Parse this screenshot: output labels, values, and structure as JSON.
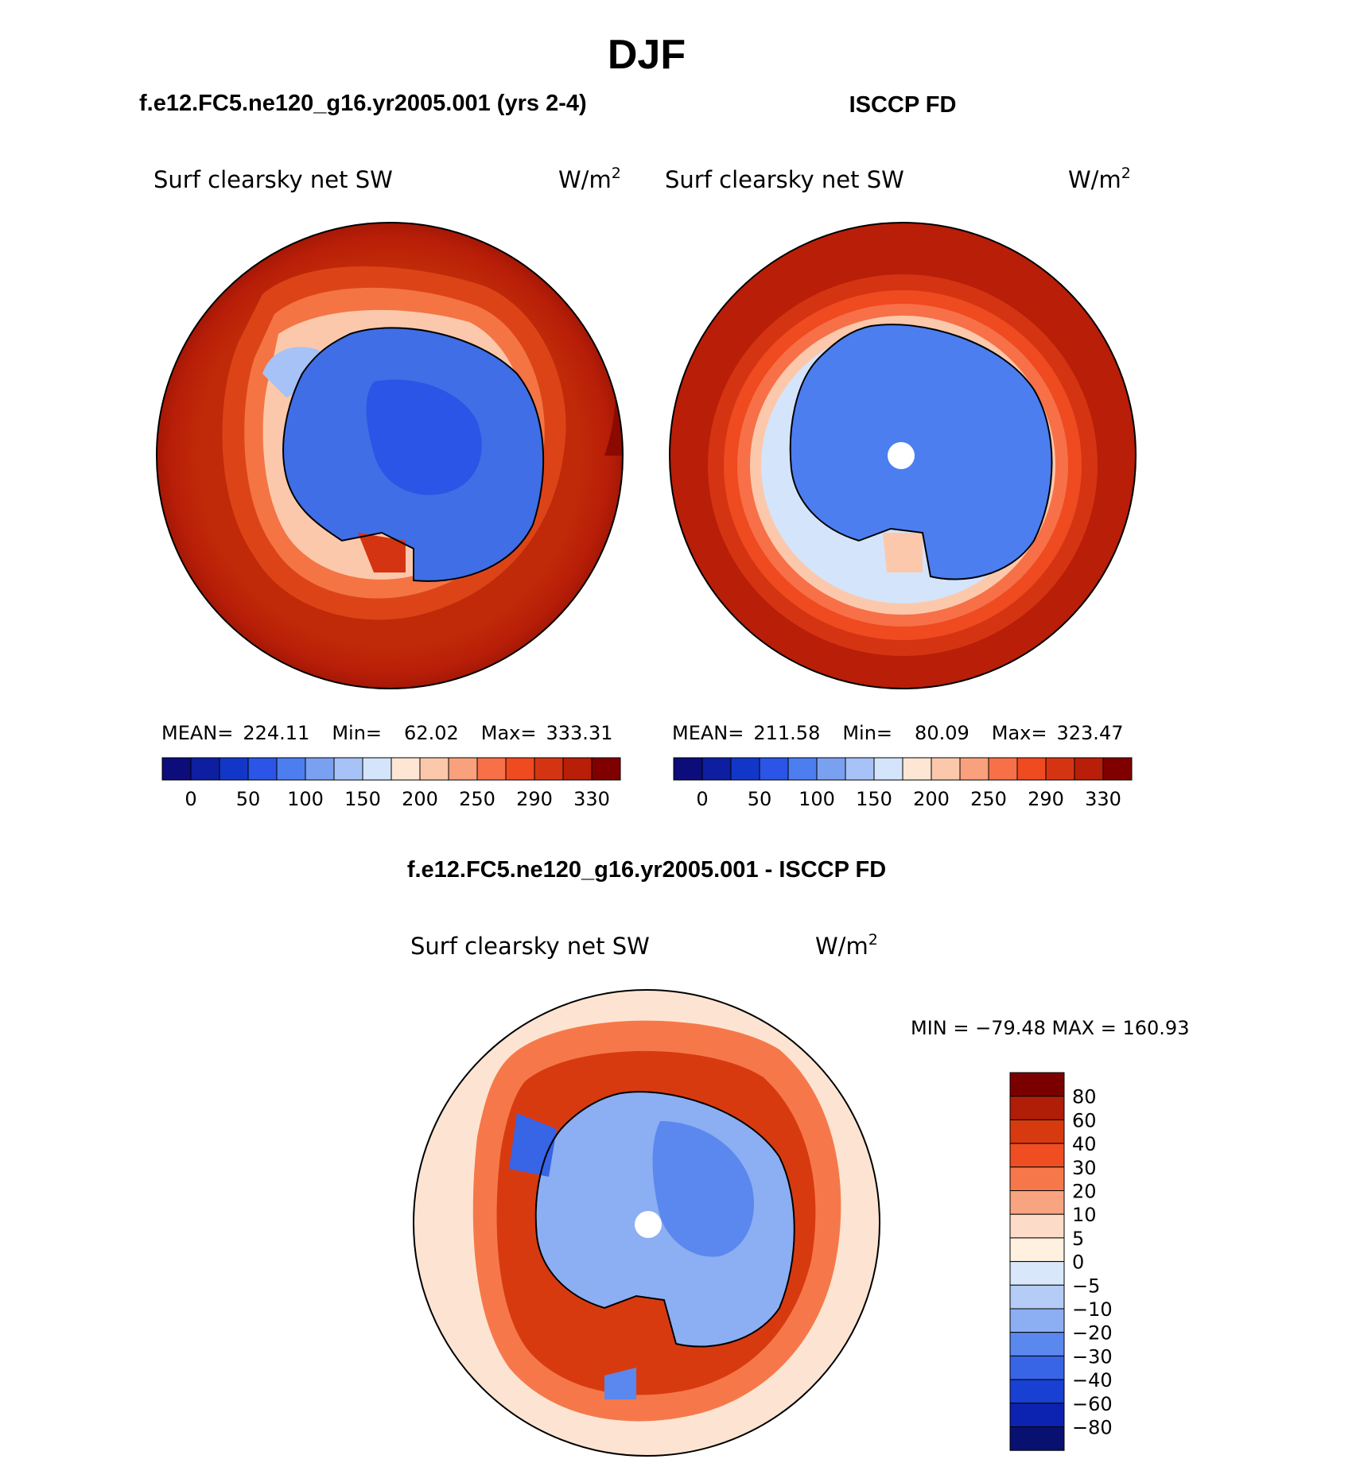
{
  "page": {
    "season_title": "DJF",
    "model_title": "f.e12.FC5.ne120_g16.yr2005.001 (yrs 2-4)",
    "obs_title": "ISCCP FD",
    "diff_title": "f.e12.FC5.ne120_g16.yr2005.001 - ISCCP FD"
  },
  "panels": {
    "model": {
      "variable": "Surf clearsky net SW",
      "units": "W/m",
      "units_exp": "2",
      "stats": {
        "mean_label": "MEAN=",
        "mean": "224.11",
        "min_label": "Min=",
        "min": "62.02",
        "max_label": "Max=",
        "max": "333.31"
      }
    },
    "obs": {
      "variable": "Surf clearsky net SW",
      "units": "W/m",
      "units_exp": "2",
      "stats": {
        "mean_label": "MEAN=",
        "mean": "211.58",
        "min_label": "Min=",
        "min": "80.09",
        "max_label": "Max=",
        "max": "323.47"
      }
    },
    "diff": {
      "variable": "Surf clearsky net SW",
      "units": "W/m",
      "units_exp": "2",
      "minmax": "MIN = −79.48 MAX = 160.93"
    }
  },
  "chart_data": [
    {
      "type": "heatmap",
      "projection": "south-polar-stereographic",
      "title": "f.e12.FC5.ne120_g16.yr2005.001 (yrs 2-4)",
      "variable": "Surf clearsky net SW",
      "units": "W/m2",
      "mean": 224.11,
      "min": 62.02,
      "max": 333.31,
      "colorbar": {
        "orientation": "horizontal",
        "levels": [
          "0",
          "50",
          "100",
          "150",
          "200",
          "250",
          "290",
          "330"
        ],
        "colors": [
          "#0c0c7a",
          "#0d1ea0",
          "#1237c8",
          "#2a55e6",
          "#4c7ef0",
          "#7aa0f0",
          "#a6c2f6",
          "#d4e4fa",
          "#fde6d4",
          "#fcc8ac",
          "#f9a07c",
          "#f77048",
          "#ef4a20",
          "#d53412",
          "#b81e08",
          "#800000"
        ]
      }
    },
    {
      "type": "heatmap",
      "projection": "south-polar-stereographic",
      "title": "ISCCP FD",
      "variable": "Surf clearsky net SW",
      "units": "W/m2",
      "mean": 211.58,
      "min": 80.09,
      "max": 323.47,
      "colorbar": {
        "orientation": "horizontal",
        "levels": [
          "0",
          "50",
          "100",
          "150",
          "200",
          "250",
          "290",
          "330"
        ],
        "colors": [
          "#0c0c7a",
          "#0d1ea0",
          "#1237c8",
          "#2a55e6",
          "#4c7ef0",
          "#7aa0f0",
          "#a6c2f6",
          "#d4e4fa",
          "#fde6d4",
          "#fcc8ac",
          "#f9a07c",
          "#f77048",
          "#ef4a20",
          "#d53412",
          "#b81e08",
          "#800000"
        ]
      }
    },
    {
      "type": "heatmap",
      "projection": "south-polar-stereographic",
      "title": "f.e12.FC5.ne120_g16.yr2005.001 - ISCCP FD",
      "variable": "Surf clearsky net SW",
      "units": "W/m2",
      "min": -79.48,
      "max": 160.93,
      "colorbar": {
        "orientation": "vertical",
        "levels": [
          "80",
          "60",
          "40",
          "30",
          "20",
          "10",
          "5",
          "0",
          "−5",
          "−10",
          "−20",
          "−30",
          "−40",
          "−60",
          "−80"
        ],
        "colors": [
          "#7a0000",
          "#b01e08",
          "#d83a10",
          "#f04e22",
          "#f6784a",
          "#f8a480",
          "#fcdcc8",
          "#fff0e0",
          "#d8e8fa",
          "#b4ccf6",
          "#8caef2",
          "#5a88ee",
          "#3864e6",
          "#1840d2",
          "#0c22b0",
          "#081070"
        ]
      }
    }
  ]
}
